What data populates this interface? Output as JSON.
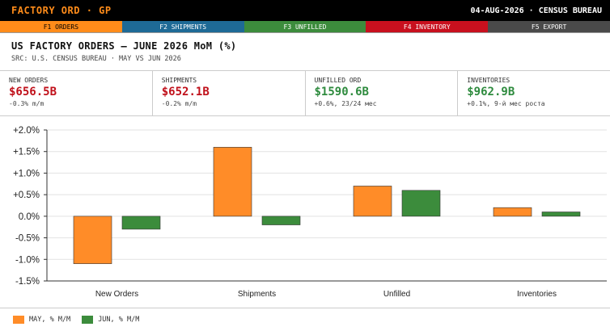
{
  "app": {
    "title": "FACTORY ORD · GP",
    "date_source": "04-AUG-2026 · CENSUS BUREAU"
  },
  "fkeys": [
    {
      "label": "F1 ORDERS",
      "color": "#ff8c1a"
    },
    {
      "label": "F2 SHIPMENTS",
      "color": "#1e6a96"
    },
    {
      "label": "F3 UNFILLED",
      "color": "#3c8c3c"
    },
    {
      "label": "F4 INVENTORY",
      "color": "#c8101e"
    },
    {
      "label": "F5 EXPORT",
      "color": "#4a4a4a"
    }
  ],
  "header": {
    "title": "US FACTORY ORDERS — JUNE 2026 MoM (%)",
    "subtitle": "SRC: U.S. CENSUS BUREAU · MAY VS JUN 2026"
  },
  "kpis": [
    {
      "label": "NEW ORDERS",
      "value": "$656.5B",
      "delta": "-0.3% m/m",
      "color": "#c0101a"
    },
    {
      "label": "SHIPMENTS",
      "value": "$652.1B",
      "delta": "-0.2% m/m",
      "color": "#c0101a"
    },
    {
      "label": "UNFILLED ORD",
      "value": "$1590.6B",
      "delta": "+0.6%, 23/24 мес",
      "color": "#2e8b3e"
    },
    {
      "label": "INVENTORIES",
      "value": "$962.9B",
      "delta": "+0.1%, 9-й мес роста",
      "color": "#2e8b3e"
    }
  ],
  "chart_data": {
    "type": "bar",
    "categories": [
      "New Orders",
      "Shipments",
      "Unfilled",
      "Inventories"
    ],
    "series": [
      {
        "name": "MAY, % M/M",
        "values": [
          -1.1,
          1.6,
          0.7,
          0.2
        ],
        "color": "#ff8c28"
      },
      {
        "name": "JUN, % M/M",
        "values": [
          -0.3,
          -0.2,
          0.6,
          0.1
        ],
        "color": "#3c8c3c"
      }
    ],
    "yticks": [
      "+2.0%",
      "+1.5%",
      "+1.0%",
      "+0.5%",
      "0.0%",
      "-0.5%",
      "-1.0%",
      "-1.5%"
    ],
    "ylim": [
      -1.5,
      2.0
    ],
    "grid": true,
    "legend": "bottom-left"
  }
}
